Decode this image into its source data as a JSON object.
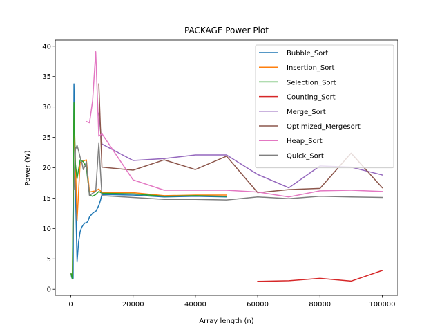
{
  "chart_data": {
    "type": "line",
    "title": "PACKAGE Power Plot",
    "xlabel": "Array length (n)",
    "ylabel": "Power (W)",
    "xlim": [
      -5000,
      105000
    ],
    "ylim": [
      -1,
      41
    ],
    "xticks": [
      0,
      20000,
      40000,
      60000,
      80000,
      100000
    ],
    "yticks": [
      0,
      5,
      10,
      15,
      20,
      25,
      30,
      35,
      40
    ],
    "grid": false,
    "legend_position": "upper-right",
    "series": [
      {
        "name": "Bubble_Sort",
        "color": "#1f77b4",
        "x": [
          100,
          250,
          500,
          750,
          1000,
          1500,
          2000,
          2500,
          3000,
          3500,
          4000,
          4500,
          5000,
          5500,
          6000,
          6500,
          7000,
          7500,
          8000,
          8500,
          9000,
          9500,
          10000,
          20000,
          30000,
          40000,
          50000
        ],
        "y": [
          2.4,
          2.0,
          1.7,
          1.8,
          33.8,
          16.0,
          4.5,
          7.8,
          9.5,
          10.2,
          10.6,
          10.9,
          10.9,
          11.2,
          11.9,
          12.2,
          12.5,
          12.7,
          12.8,
          13.3,
          13.8,
          14.6,
          15.6,
          15.5,
          15.2,
          15.3,
          15.2
        ]
      },
      {
        "name": "Insertion_Sort",
        "color": "#ff7f0e",
        "x": [
          100,
          500,
          1000,
          1500,
          2000,
          3000,
          4000,
          5000,
          6000,
          7000,
          8000,
          9000,
          10000,
          20000,
          30000,
          40000,
          50000
        ],
        "y": [
          2.5,
          2.0,
          28.0,
          20.5,
          11.3,
          20.9,
          21.1,
          21.3,
          16.0,
          16.1,
          16.2,
          16.5,
          15.9,
          15.9,
          15.4,
          15.5,
          15.5
        ]
      },
      {
        "name": "Selection_Sort",
        "color": "#2ca02c",
        "x": [
          100,
          500,
          1000,
          1500,
          2000,
          3000,
          4000,
          5000,
          6000,
          7000,
          8000,
          9000,
          10000,
          20000,
          30000,
          40000,
          50000
        ],
        "y": [
          2.6,
          1.7,
          30.7,
          20.5,
          18.2,
          21.3,
          21.0,
          20.0,
          15.5,
          15.3,
          15.6,
          16.1,
          15.8,
          15.7,
          15.3,
          15.4,
          15.3
        ]
      },
      {
        "name": "Counting_Sort",
        "color": "#d62728",
        "x": [
          60000,
          70000,
          80000,
          90000,
          100000
        ],
        "y": [
          1.3,
          1.4,
          1.8,
          1.35,
          3.1
        ]
      },
      {
        "name": "Merge_Sort",
        "color": "#9467bd",
        "x": [
          9000,
          10000,
          20000,
          30000,
          40000,
          50000,
          60000,
          70000,
          80000,
          90000,
          100000
        ],
        "y": [
          29.0,
          23.9,
          21.2,
          21.5,
          22.1,
          22.1,
          18.9,
          16.7,
          20.3,
          20.1,
          18.8
        ]
      },
      {
        "name": "Optimized_Mergesort",
        "color": "#8c564b",
        "x": [
          9000,
          10000,
          20000,
          30000,
          40000,
          50000,
          60000,
          70000,
          80000,
          90000,
          100000
        ],
        "y": [
          33.8,
          20.1,
          19.6,
          21.3,
          19.7,
          21.9,
          15.9,
          16.4,
          16.6,
          22.4,
          16.7
        ]
      },
      {
        "name": "Heap_Sort",
        "color": "#e377c2",
        "x": [
          5000,
          6000,
          7000,
          8000,
          9000,
          10000,
          20000,
          30000,
          40000,
          50000,
          60000,
          70000,
          80000,
          90000,
          100000
        ],
        "y": [
          27.6,
          27.4,
          31.0,
          39.1,
          25.2,
          25.6,
          18.0,
          16.3,
          16.3,
          16.3,
          16.0,
          15.2,
          16.2,
          16.3,
          16.1
        ]
      },
      {
        "name": "Quick_Sort",
        "color": "#7f7f7f",
        "x": [
          1000,
          1500,
          2000,
          2500,
          3000,
          3500,
          4000,
          4500,
          5000,
          5500,
          6000,
          7000,
          8000,
          9000,
          10000,
          20000,
          30000,
          40000,
          50000,
          60000,
          70000,
          80000,
          90000,
          100000
        ],
        "y": [
          16.5,
          23.0,
          23.7,
          22.8,
          21.7,
          21.0,
          19.7,
          20.2,
          21.0,
          18.0,
          15.4,
          15.8,
          16.1,
          24.0,
          15.4,
          15.1,
          14.8,
          14.8,
          14.7,
          15.2,
          14.9,
          15.3,
          15.2,
          15.1
        ]
      }
    ]
  }
}
